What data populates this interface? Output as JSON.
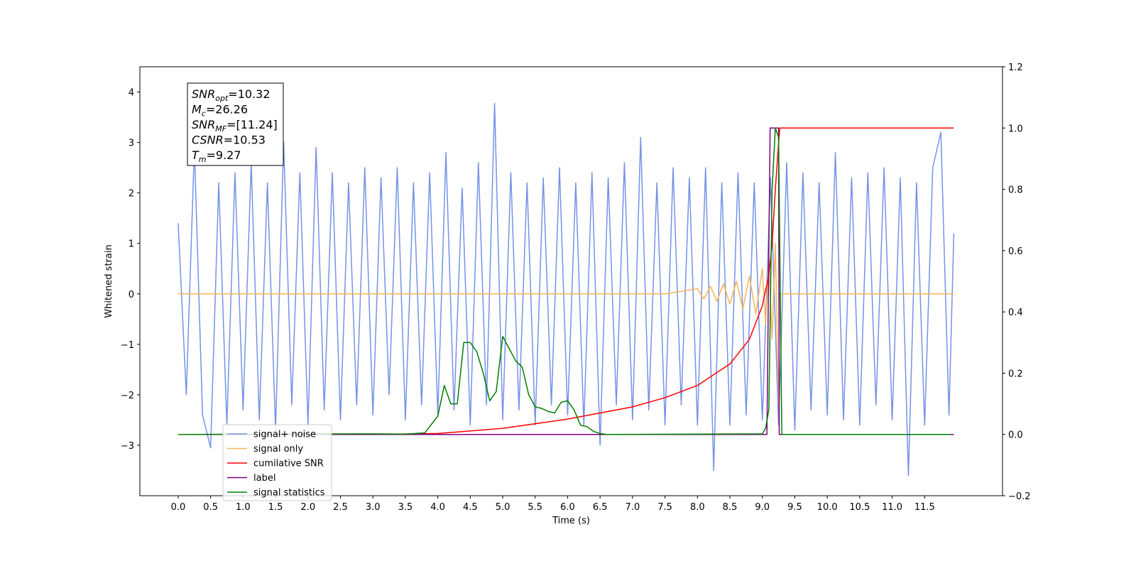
{
  "chart_data": {
    "type": "line",
    "xlabel": "Time (s)",
    "ylabel": "Whitened strain",
    "xlim": [
      -0.59,
      12.7
    ],
    "ylim": [
      -4.0,
      4.5
    ],
    "y2lim": [
      -0.2,
      1.2
    ],
    "xticks": [
      {
        "value": 0,
        "label": "0.0"
      },
      0.5,
      {
        "value": 1,
        "label": "1.0"
      },
      1.5,
      {
        "value": 2,
        "label": "2.0"
      },
      2.5,
      {
        "value": 3,
        "label": "3.0"
      },
      3.5,
      {
        "value": 4,
        "label": "4.0"
      },
      4.5,
      {
        "value": 5,
        "label": "5.0"
      },
      5.5,
      {
        "value": 6,
        "label": "6.0"
      },
      6.5,
      {
        "value": 7,
        "label": "7.0"
      },
      7.5,
      {
        "value": 8,
        "label": "8.0"
      },
      8.5,
      {
        "value": 9,
        "label": "9.0"
      },
      9.5,
      {
        "value": 10,
        "label": "10.0"
      },
      10.5,
      {
        "value": 11,
        "label": "11.0"
      },
      11.5
    ],
    "yticks": [
      {
        "value": -3,
        "label": "−3"
      },
      {
        "value": -2,
        "label": "−2"
      },
      {
        "value": -1,
        "label": "−1"
      },
      0,
      1,
      2,
      3,
      4
    ],
    "y2ticks": [
      {
        "value": -0.2,
        "label": "−0.2"
      },
      {
        "value": 0,
        "label": "0.0"
      },
      0.2,
      0.4,
      0.6,
      0.8,
      {
        "value": 1,
        "label": "1.0"
      },
      1.2
    ],
    "annotation": [
      {
        "symbol": "SNR",
        "sub": "opt",
        "text": "=10.32"
      },
      {
        "symbol": "M",
        "sub": "c",
        "text": "=26.26"
      },
      {
        "symbol": "SNR",
        "sub": "MF",
        "text": "=[11.24]"
      },
      {
        "symbol": "CSNR",
        "text": "=10.53"
      },
      {
        "symbol": "T",
        "sub": "m",
        "text": "=9.27"
      }
    ],
    "series": [
      {
        "name": "signal+ noise",
        "color": "#7592e6",
        "axis": "y",
        "x": [
          0,
          0.125,
          0.25,
          0.375,
          0.5,
          0.625,
          0.75,
          0.875,
          1,
          1.125,
          1.25,
          1.375,
          1.5,
          1.625,
          1.75,
          1.875,
          2,
          2.125,
          2.25,
          2.375,
          2.5,
          2.625,
          2.75,
          2.875,
          3,
          3.125,
          3.25,
          3.375,
          3.5,
          3.625,
          3.75,
          3.875,
          4,
          4.125,
          4.25,
          4.375,
          4.5,
          4.625,
          4.75,
          4.875,
          5,
          5.125,
          5.25,
          5.375,
          5.5,
          5.625,
          5.75,
          5.875,
          6,
          6.125,
          6.25,
          6.375,
          6.5,
          6.625,
          6.75,
          6.875,
          7,
          7.125,
          7.25,
          7.375,
          7.5,
          7.625,
          7.75,
          7.875,
          8,
          8.125,
          8.25,
          8.375,
          8.5,
          8.625,
          8.75,
          8.875,
          9,
          9.125,
          9.25,
          9.375,
          9.5,
          9.625,
          9.75,
          9.875,
          10,
          10.125,
          10.25,
          10.375,
          10.5,
          10.625,
          10.75,
          10.875,
          11,
          11.125,
          11.25,
          11.375,
          11.5,
          11.625,
          11.75,
          11.875,
          11.95
        ],
        "values": [
          1.4,
          -2.0,
          2.9,
          -2.4,
          -3.05,
          2.2,
          -2.6,
          2.4,
          -2.3,
          2.6,
          -2.5,
          2.2,
          -2.7,
          3.0,
          -2.2,
          2.4,
          -2.6,
          2.9,
          -2.3,
          2.4,
          -2.5,
          2.2,
          -2.2,
          2.5,
          -2.4,
          2.3,
          -2.0,
          2.5,
          -2.5,
          2.2,
          -2.2,
          2.4,
          -2.4,
          2.8,
          -2.3,
          2.1,
          -2.6,
          2.6,
          -2.2,
          3.77,
          -2.5,
          2.4,
          -2.3,
          2.2,
          -2.6,
          2.3,
          -2.2,
          2.5,
          -2.4,
          2.2,
          -2.6,
          2.4,
          -3.0,
          2.3,
          -2.2,
          2.6,
          -2.5,
          3.1,
          -2.3,
          2.2,
          -2.6,
          2.5,
          -2.2,
          2.3,
          -2.6,
          2.5,
          -3.5,
          2.2,
          -2.6,
          2.4,
          -2.4,
          2.2,
          -2.5,
          2.3,
          -2.6,
          2.6,
          -2.7,
          2.4,
          -2.3,
          2.2,
          -2.4,
          2.8,
          -2.5,
          2.3,
          -2.6,
          2.4,
          -2.2,
          2.5,
          -2.5,
          2.3,
          -3.6,
          2.2,
          -2.6,
          2.5,
          3.2,
          -2.4,
          1.2
        ]
      },
      {
        "name": "signal only",
        "color": "#f5b45a",
        "axis": "y",
        "x": [
          0,
          7.5,
          8.0,
          8.1,
          8.2,
          8.3,
          8.4,
          8.5,
          8.6,
          8.7,
          8.8,
          8.9,
          9.0,
          9.05,
          9.1,
          9.15,
          9.2,
          9.25,
          9.27,
          11.95
        ],
        "values": [
          0,
          0,
          0.1,
          -0.1,
          0.15,
          -0.15,
          0.2,
          -0.2,
          0.25,
          -0.3,
          0.35,
          -0.4,
          0.5,
          -0.6,
          0.7,
          -0.9,
          1.0,
          -2.2,
          0,
          0
        ]
      },
      {
        "name": "cumilative SNR",
        "color": "#ff0000",
        "axis": "y2",
        "x": [
          0,
          3.0,
          4.0,
          5.0,
          6.0,
          7.0,
          7.5,
          8.0,
          8.5,
          8.8,
          9.0,
          9.1,
          9.15,
          9.2,
          9.25,
          9.27,
          11.95
        ],
        "values": [
          0,
          0,
          0.003,
          0.02,
          0.05,
          0.09,
          0.12,
          0.16,
          0.23,
          0.31,
          0.42,
          0.52,
          0.62,
          0.8,
          0.95,
          1.0,
          1.0
        ]
      },
      {
        "name": "label",
        "color": "#800080",
        "axis": "y2",
        "x": [
          0,
          9.07,
          9.12,
          9.25,
          9.26,
          11.95
        ],
        "values": [
          0,
          0,
          1,
          1,
          0,
          0
        ]
      },
      {
        "name": "signal statistics",
        "color": "#008000",
        "axis": "y2",
        "x": [
          0,
          3.0,
          3.5,
          3.8,
          4.0,
          4.1,
          4.2,
          4.3,
          4.4,
          4.5,
          4.6,
          4.7,
          4.8,
          4.9,
          5.0,
          5.1,
          5.2,
          5.3,
          5.4,
          5.5,
          5.6,
          5.7,
          5.8,
          5.9,
          6.0,
          6.1,
          6.2,
          6.3,
          6.4,
          6.5,
          6.6,
          9.0,
          9.05,
          9.1,
          9.15,
          9.2,
          9.25,
          9.3,
          11.9
        ],
        "values": [
          0,
          0.002,
          0.001,
          0.005,
          0.06,
          0.16,
          0.1,
          0.1,
          0.3,
          0.3,
          0.27,
          0.2,
          0.11,
          0.14,
          0.32,
          0.28,
          0.24,
          0.22,
          0.13,
          0.09,
          0.085,
          0.075,
          0.07,
          0.105,
          0.11,
          0.08,
          0.03,
          0.025,
          0.01,
          0.003,
          0,
          0.002,
          0.02,
          0.08,
          0.8,
          1.0,
          0.97,
          0,
          0
        ]
      }
    ]
  }
}
